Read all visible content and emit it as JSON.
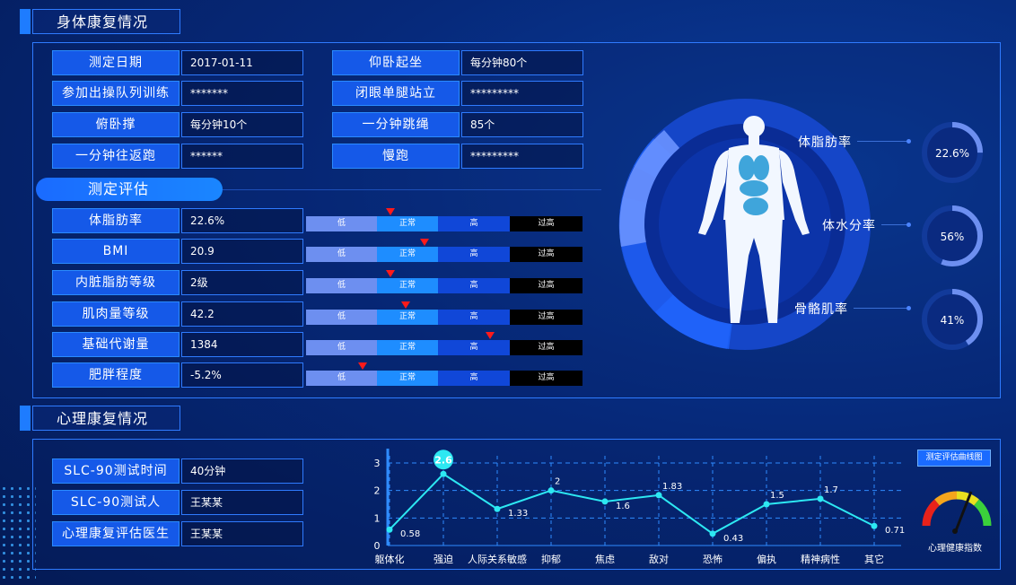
{
  "sections": {
    "physical_title": "身体康复情况",
    "mental_title": "心理康复情况"
  },
  "basic": [
    {
      "label": "测定日期",
      "value": "2017-01-11"
    },
    {
      "label": "参加出操队列训练",
      "value": "*******"
    },
    {
      "label": "俯卧撑",
      "value": "每分钟10个"
    },
    {
      "label": "一分钟往返跑",
      "value": "******"
    },
    {
      "label": "仰卧起坐",
      "value": "每分钟80个"
    },
    {
      "label": "闭眼单腿站立",
      "value": "*********"
    },
    {
      "label": "一分钟跳绳",
      "value": "85个"
    },
    {
      "label": "慢跑",
      "value": "*********"
    }
  ],
  "evaluation": {
    "title": "测定评估",
    "scale_labels": [
      "低",
      "正常",
      "高",
      "过高"
    ],
    "rows": [
      {
        "label": "体脂肪率",
        "value": "22.6%",
        "marker": 0.305
      },
      {
        "label": "BMI",
        "value": "20.9",
        "marker": 0.43
      },
      {
        "label": "内脏脂肪等级",
        "value": "2级",
        "marker": 0.305
      },
      {
        "label": "肌肉量等级",
        "value": "42.2",
        "marker": 0.36
      },
      {
        "label": "基础代谢量",
        "value": "1384",
        "marker": 0.665
      },
      {
        "label": "肥胖程度",
        "value": "-5.2%",
        "marker": 0.205
      }
    ]
  },
  "body_metrics": [
    {
      "label": "体脂肪率",
      "value": "22.6%",
      "fraction": 0.226
    },
    {
      "label": "体水分率",
      "value": "56%",
      "fraction": 0.56
    },
    {
      "label": "骨骼肌率",
      "value": "41%",
      "fraction": 0.41
    }
  ],
  "mental": [
    {
      "label": "SLC-90测试时间",
      "value": "40分钟"
    },
    {
      "label": "SLC-90测试人",
      "value": "王某某"
    },
    {
      "label": "心理康复评估医生",
      "value": "王某某"
    }
  ],
  "curve_button": "测定评估曲线图",
  "gauge_label": "心理健康指数",
  "colors": {
    "accent": "#1a6bff",
    "line": "#2de8f2",
    "marker": "#ff1a1a"
  },
  "chart_data": {
    "type": "line",
    "categories": [
      "躯体化",
      "强迫",
      "人际关系敏感",
      "抑郁",
      "焦虑",
      "敌对",
      "恐怖",
      "偏执",
      "精神病性",
      "其它"
    ],
    "values": [
      0.58,
      2.6,
      1.33,
      2,
      1.6,
      1.83,
      0.43,
      1.5,
      1.7,
      0.71
    ],
    "labels": [
      "0.58",
      "2.6",
      "1.33",
      "2",
      "1.6",
      "1.83",
      "0.43",
      "1.5",
      "1.7",
      "0.71"
    ],
    "yticks": [
      "0",
      "1",
      "2",
      "3"
    ],
    "ylim": [
      0,
      3
    ],
    "highlight_index": 1,
    "grid": true
  }
}
